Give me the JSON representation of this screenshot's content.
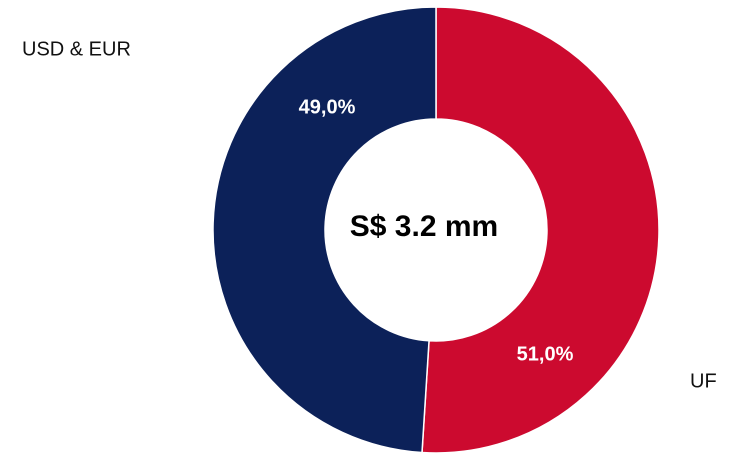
{
  "chart_data": {
    "type": "donut",
    "categories": [
      "UF",
      "USD & EUR"
    ],
    "values": [
      51.0,
      49.0
    ],
    "value_labels": [
      "51,0%",
      "49,0%"
    ],
    "colors": [
      "#cc0a2f",
      "#0c2159"
    ],
    "center_label": "S$ 3.2 mm"
  }
}
